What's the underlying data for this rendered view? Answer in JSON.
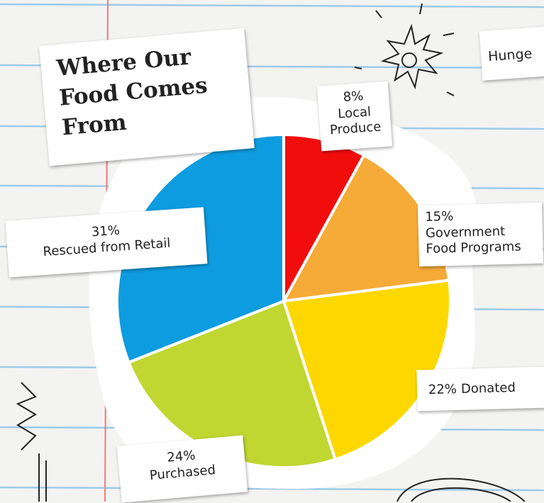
{
  "chart_data": {
    "type": "pie",
    "title": "Where Our Food Comes From",
    "annotation": "Hunge",
    "categories": [
      "Local Produce",
      "Government Food Programs",
      "Donated",
      "Purchased",
      "Rescued from Retail"
    ],
    "values": [
      8,
      15,
      22,
      24,
      31
    ],
    "value_labels": [
      "8%",
      "15%",
      "22%",
      "24%",
      "31%"
    ],
    "colors": [
      "#f20d0d",
      "#f6aa38",
      "#fcd800",
      "#c0d631",
      "#0e9ce0"
    ]
  }
}
